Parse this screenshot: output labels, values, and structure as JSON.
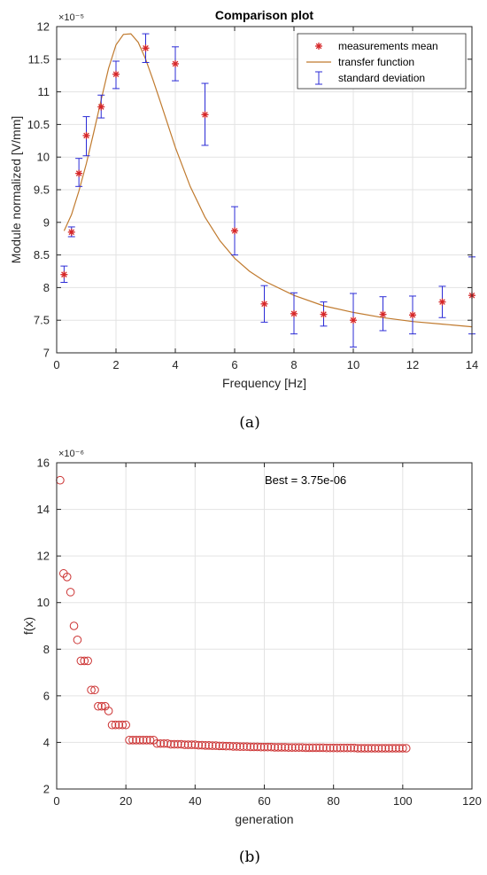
{
  "captions": {
    "a": "(a)",
    "b": "(b)"
  },
  "colors": {
    "marker": "#d62728",
    "markerStroke": "#8b1a1a",
    "curve": "#c07a2e",
    "errorbar": "#2b2bd6",
    "scatter": "#cc3333",
    "grid": "#e3e3e3",
    "axis": "#262626"
  },
  "chart_data": [
    {
      "type": "scatter",
      "title": "Comparison plot",
      "xlabel": "Frequency [Hz]",
      "ylabel": "Module normalized [V/mm]",
      "exponent_label": "×10⁻⁵",
      "xlim": [
        0,
        14
      ],
      "ylim": [
        7,
        12
      ],
      "xticks": [
        "0",
        "2",
        "4",
        "6",
        "8",
        "10",
        "12",
        "14"
      ],
      "yticks": [
        "7",
        "7.5",
        "8",
        "8.5",
        "9",
        "9.5",
        "10",
        "10.5",
        "11",
        "11.5",
        "12"
      ],
      "grid": true,
      "legend": {
        "position": "top-right",
        "entries": [
          "measurements mean",
          "transfer function",
          "standard deviation"
        ]
      },
      "series": [
        {
          "name": "measurements mean",
          "x": [
            0.25,
            0.5,
            0.75,
            1.0,
            1.5,
            2.0,
            3.0,
            4.0,
            5.0,
            6.0,
            7.0,
            8.0,
            9.0,
            10.0,
            11.0,
            12.0,
            13.0,
            14.0
          ],
          "y": [
            8.2,
            8.85,
            9.75,
            10.33,
            10.77,
            11.27,
            11.67,
            11.43,
            10.65,
            8.87,
            7.75,
            7.6,
            7.59,
            7.5,
            7.59,
            7.58,
            7.78,
            7.88
          ],
          "err_low": [
            8.08,
            8.78,
            9.55,
            10.02,
            10.6,
            11.05,
            11.45,
            11.17,
            10.18,
            8.5,
            7.47,
            7.29,
            7.41,
            7.09,
            7.34,
            7.29,
            7.54,
            7.29
          ],
          "err_high": [
            8.33,
            8.93,
            9.98,
            10.62,
            10.95,
            11.47,
            11.89,
            11.69,
            11.13,
            9.24,
            8.03,
            7.92,
            7.78,
            7.91,
            7.86,
            7.87,
            8.02,
            8.47
          ]
        },
        {
          "name": "transfer function",
          "x": [
            0.25,
            0.5,
            0.75,
            1.0,
            1.25,
            1.5,
            1.75,
            2.0,
            2.25,
            2.5,
            2.75,
            3.0,
            3.25,
            3.5,
            4.0,
            4.5,
            5.0,
            5.5,
            6.0,
            6.5,
            7.0,
            8.0,
            9.0,
            10.0,
            11.0,
            12.0,
            13.0,
            14.0
          ],
          "y": [
            8.87,
            9.12,
            9.48,
            9.9,
            10.38,
            10.88,
            11.36,
            11.72,
            11.88,
            11.89,
            11.76,
            11.5,
            11.18,
            10.84,
            10.15,
            9.55,
            9.08,
            8.72,
            8.45,
            8.25,
            8.1,
            7.88,
            7.72,
            7.62,
            7.54,
            7.48,
            7.44,
            7.4
          ]
        }
      ]
    },
    {
      "type": "scatter",
      "title": "",
      "xlabel": "generation",
      "ylabel": "f(x)",
      "exponent_label": "×10⁻⁶",
      "annotation": "Best = 3.75e-06",
      "xlim": [
        0,
        120
      ],
      "ylim": [
        2,
        16
      ],
      "xticks": [
        "0",
        "20",
        "40",
        "60",
        "80",
        "100",
        "120"
      ],
      "yticks": [
        "2",
        "4",
        "6",
        "8",
        "10",
        "12",
        "14",
        "16"
      ],
      "grid": true,
      "series": [
        {
          "x": [
            1,
            2,
            3,
            4,
            5,
            6,
            7,
            8,
            9,
            10,
            11,
            12,
            13,
            14,
            15,
            16,
            17,
            18,
            19,
            20,
            21,
            22,
            23,
            24,
            25,
            26,
            27,
            28,
            29,
            30,
            31,
            32,
            33,
            34,
            35,
            36,
            37,
            38,
            39,
            40,
            41,
            42,
            43,
            44,
            45,
            46,
            47,
            48,
            49,
            50,
            51,
            52,
            53,
            54,
            55,
            56,
            57,
            58,
            59,
            60,
            61,
            62,
            63,
            64,
            65,
            66,
            67,
            68,
            69,
            70,
            71,
            72,
            73,
            74,
            75,
            76,
            77,
            78,
            79,
            80,
            81,
            82,
            83,
            84,
            85,
            86,
            87,
            88,
            89,
            90,
            91,
            92,
            93,
            94,
            95,
            96,
            97,
            98,
            99,
            100,
            101
          ],
          "y": [
            15.25,
            11.25,
            11.1,
            10.45,
            9.0,
            8.4,
            7.5,
            7.5,
            7.5,
            6.25,
            6.25,
            5.55,
            5.55,
            5.55,
            5.35,
            4.75,
            4.75,
            4.75,
            4.75,
            4.75,
            4.1,
            4.1,
            4.1,
            4.1,
            4.1,
            4.1,
            4.1,
            4.1,
            3.95,
            3.95,
            3.95,
            3.95,
            3.92,
            3.92,
            3.92,
            3.92,
            3.9,
            3.9,
            3.9,
            3.9,
            3.88,
            3.88,
            3.87,
            3.87,
            3.86,
            3.86,
            3.85,
            3.85,
            3.84,
            3.84,
            3.83,
            3.83,
            3.82,
            3.82,
            3.82,
            3.81,
            3.81,
            3.81,
            3.8,
            3.8,
            3.8,
            3.8,
            3.79,
            3.79,
            3.79,
            3.79,
            3.78,
            3.78,
            3.78,
            3.78,
            3.78,
            3.77,
            3.77,
            3.77,
            3.77,
            3.77,
            3.77,
            3.76,
            3.76,
            3.76,
            3.76,
            3.76,
            3.76,
            3.76,
            3.76,
            3.76,
            3.75,
            3.75,
            3.75,
            3.75,
            3.75,
            3.75,
            3.75,
            3.75,
            3.75,
            3.75,
            3.75,
            3.75,
            3.75,
            3.75,
            3.75
          ]
        }
      ]
    }
  ]
}
